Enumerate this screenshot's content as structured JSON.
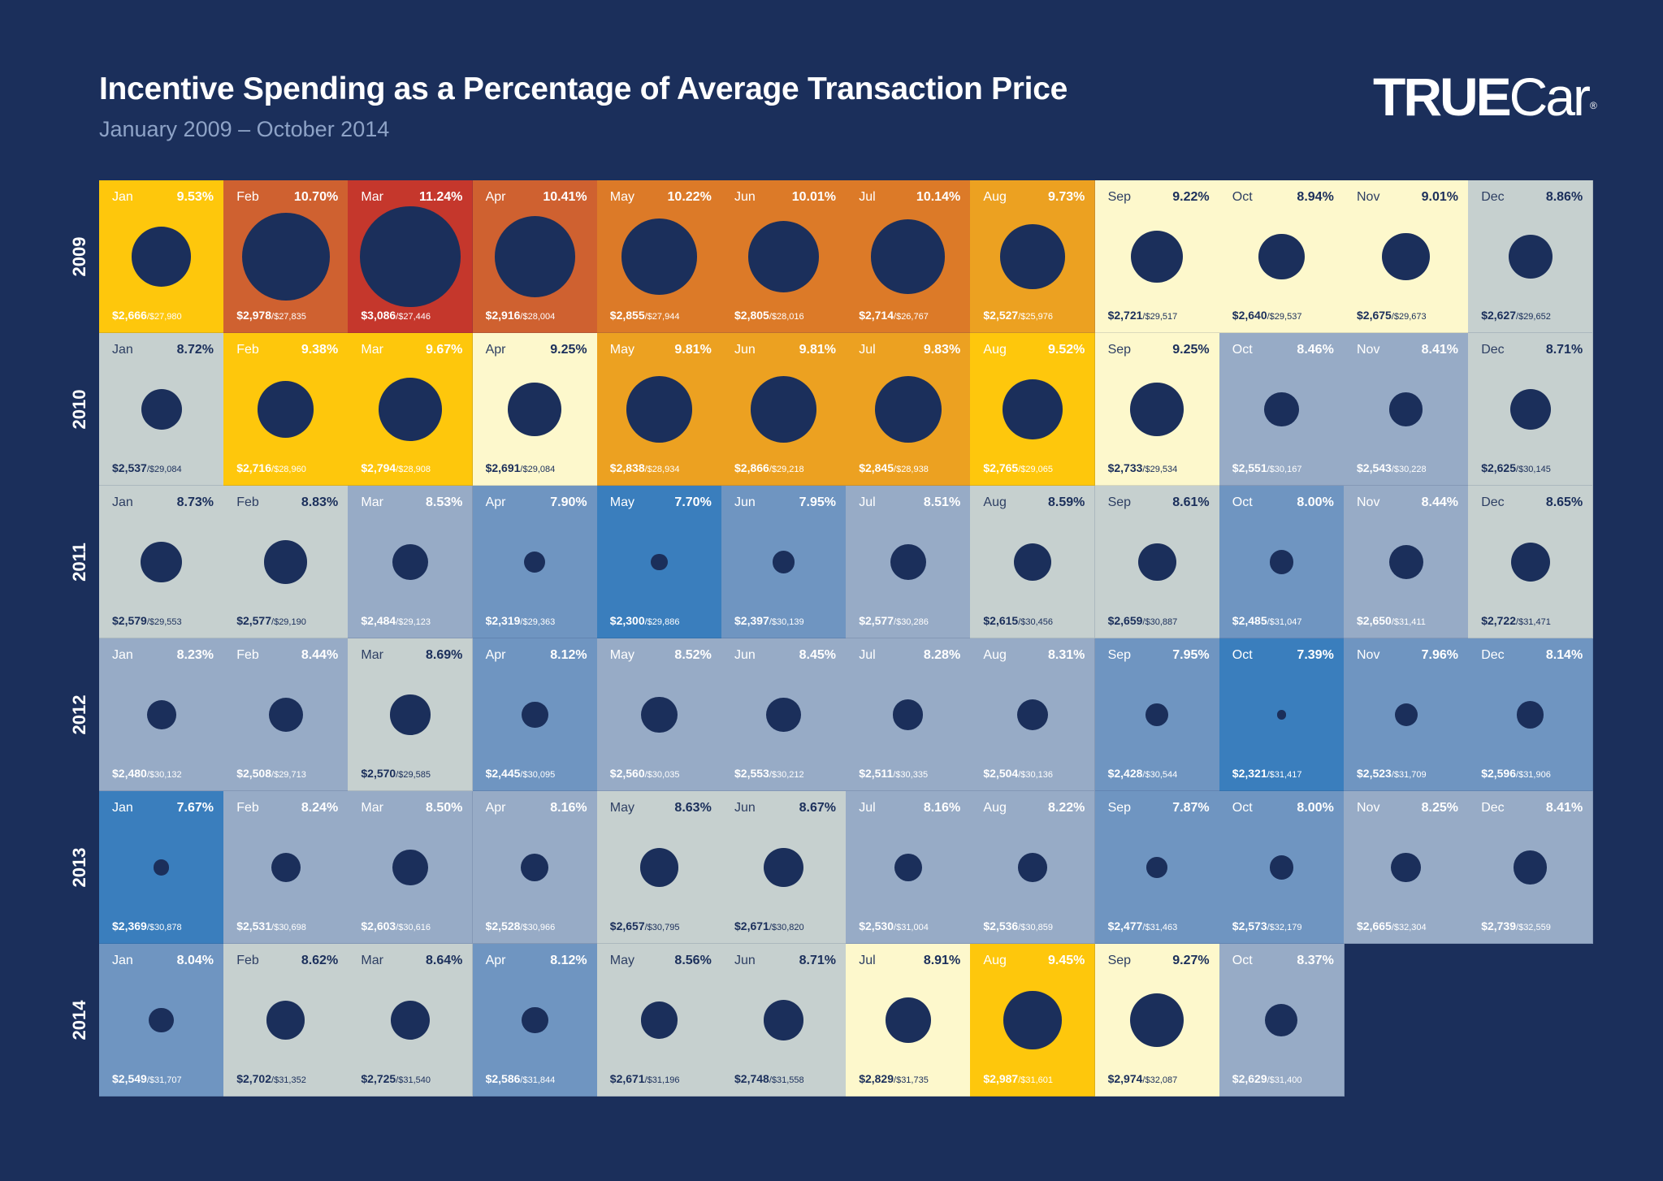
{
  "header": {
    "title": "Incentive Spending as a Percentage of Average Transaction Price",
    "subtitle": "January 2009 – October 2014",
    "logo_bold": "TRUE",
    "logo_light": "Car",
    "logo_reg": "®"
  },
  "colors": {
    "background": "#1b2f5b",
    "dot": "#1b2f5b",
    "scale": [
      "#3a7ebd",
      "#6f95c1",
      "#97abc6",
      "#c6d0cf",
      "#fdf8cc",
      "#fec70c",
      "#eca121",
      "#dc7a28",
      "#cf6130",
      "#c5372c"
    ]
  },
  "chart_data": {
    "type": "heatmap",
    "title": "Incentive Spending as a Percentage of Average Transaction Price",
    "subtitle": "January 2009 – October 2014",
    "rows": [
      {
        "year": "2009",
        "cells": [
          {
            "month": "Jan",
            "pct": "9.53%",
            "incentive": "$2,666",
            "atp": "/$27,980"
          },
          {
            "month": "Feb",
            "pct": "10.70%",
            "incentive": "$2,978",
            "atp": "/$27,835"
          },
          {
            "month": "Mar",
            "pct": "11.24%",
            "incentive": "$3,086",
            "atp": "/$27,446"
          },
          {
            "month": "Apr",
            "pct": "10.41%",
            "incentive": "$2,916",
            "atp": "/$28,004"
          },
          {
            "month": "May",
            "pct": "10.22%",
            "incentive": "$2,855",
            "atp": "/$27,944"
          },
          {
            "month": "Jun",
            "pct": "10.01%",
            "incentive": "$2,805",
            "atp": "/$28,016"
          },
          {
            "month": "Jul",
            "pct": "10.14%",
            "incentive": "$2,714",
            "atp": "/$26,767"
          },
          {
            "month": "Aug",
            "pct": "9.73%",
            "incentive": "$2,527",
            "atp": "/$25,976"
          },
          {
            "month": "Sep",
            "pct": "9.22%",
            "incentive": "$2,721",
            "atp": "/$29,517"
          },
          {
            "month": "Oct",
            "pct": "8.94%",
            "incentive": "$2,640",
            "atp": "/$29,537"
          },
          {
            "month": "Nov",
            "pct": "9.01%",
            "incentive": "$2,675",
            "atp": "/$29,673"
          },
          {
            "month": "Dec",
            "pct": "8.86%",
            "incentive": "$2,627",
            "atp": "/$29,652"
          }
        ]
      },
      {
        "year": "2010",
        "cells": [
          {
            "month": "Jan",
            "pct": "8.72%",
            "incentive": "$2,537",
            "atp": "/$29,084"
          },
          {
            "month": "Feb",
            "pct": "9.38%",
            "incentive": "$2,716",
            "atp": "/$28,960"
          },
          {
            "month": "Mar",
            "pct": "9.67%",
            "incentive": "$2,794",
            "atp": "/$28,908"
          },
          {
            "month": "Apr",
            "pct": "9.25%",
            "incentive": "$2,691",
            "atp": "/$29,084"
          },
          {
            "month": "May",
            "pct": "9.81%",
            "incentive": "$2,838",
            "atp": "/$28,934"
          },
          {
            "month": "Jun",
            "pct": "9.81%",
            "incentive": "$2,866",
            "atp": "/$29,218"
          },
          {
            "month": "Jul",
            "pct": "9.83%",
            "incentive": "$2,845",
            "atp": "/$28,938"
          },
          {
            "month": "Aug",
            "pct": "9.52%",
            "incentive": "$2,765",
            "atp": "/$29,065"
          },
          {
            "month": "Sep",
            "pct": "9.25%",
            "incentive": "$2,733",
            "atp": "/$29,534"
          },
          {
            "month": "Oct",
            "pct": "8.46%",
            "incentive": "$2,551",
            "atp": "/$30,167"
          },
          {
            "month": "Nov",
            "pct": "8.41%",
            "incentive": "$2,543",
            "atp": "/$30,228"
          },
          {
            "month": "Dec",
            "pct": "8.71%",
            "incentive": "$2,625",
            "atp": "/$30,145"
          }
        ]
      },
      {
        "year": "2011",
        "cells": [
          {
            "month": "Jan",
            "pct": "8.73%",
            "incentive": "$2,579",
            "atp": "/$29,553"
          },
          {
            "month": "Feb",
            "pct": "8.83%",
            "incentive": "$2,577",
            "atp": "/$29,190"
          },
          {
            "month": "Mar",
            "pct": "8.53%",
            "incentive": "$2,484",
            "atp": "/$29,123"
          },
          {
            "month": "Apr",
            "pct": "7.90%",
            "incentive": "$2,319",
            "atp": "/$29,363"
          },
          {
            "month": "May",
            "pct": "7.70%",
            "incentive": "$2,300",
            "atp": "/$29,886"
          },
          {
            "month": "Jun",
            "pct": "7.95%",
            "incentive": "$2,397",
            "atp": "/$30,139"
          },
          {
            "month": "Jul",
            "pct": "8.51%",
            "incentive": "$2,577",
            "atp": "/$30,286"
          },
          {
            "month": "Aug",
            "pct": "8.59%",
            "incentive": "$2,615",
            "atp": "/$30,456"
          },
          {
            "month": "Sep",
            "pct": "8.61%",
            "incentive": "$2,659",
            "atp": "/$30,887"
          },
          {
            "month": "Oct",
            "pct": "8.00%",
            "incentive": "$2,485",
            "atp": "/$31,047"
          },
          {
            "month": "Nov",
            "pct": "8.44%",
            "incentive": "$2,650",
            "atp": "/$31,411"
          },
          {
            "month": "Dec",
            "pct": "8.65%",
            "incentive": "$2,722",
            "atp": "/$31,471"
          }
        ]
      },
      {
        "year": "2012",
        "cells": [
          {
            "month": "Jan",
            "pct": "8.23%",
            "incentive": "$2,480",
            "atp": "/$30,132"
          },
          {
            "month": "Feb",
            "pct": "8.44%",
            "incentive": "$2,508",
            "atp": "/$29,713"
          },
          {
            "month": "Mar",
            "pct": "8.69%",
            "incentive": "$2,570",
            "atp": "/$29,585"
          },
          {
            "month": "Apr",
            "pct": "8.12%",
            "incentive": "$2,445",
            "atp": "/$30,095"
          },
          {
            "month": "May",
            "pct": "8.52%",
            "incentive": "$2,560",
            "atp": "/$30,035"
          },
          {
            "month": "Jun",
            "pct": "8.45%",
            "incentive": "$2,553",
            "atp": "/$30,212"
          },
          {
            "month": "Jul",
            "pct": "8.28%",
            "incentive": "$2,511",
            "atp": "/$30,335"
          },
          {
            "month": "Aug",
            "pct": "8.31%",
            "incentive": "$2,504",
            "atp": "/$30,136"
          },
          {
            "month": "Sep",
            "pct": "7.95%",
            "incentive": "$2,428",
            "atp": "/$30,544"
          },
          {
            "month": "Oct",
            "pct": "7.39%",
            "incentive": "$2,321",
            "atp": "/$31,417"
          },
          {
            "month": "Nov",
            "pct": "7.96%",
            "incentive": "$2,523",
            "atp": "/$31,709"
          },
          {
            "month": "Dec",
            "pct": "8.14%",
            "incentive": "$2,596",
            "atp": "/$31,906"
          }
        ]
      },
      {
        "year": "2013",
        "cells": [
          {
            "month": "Jan",
            "pct": "7.67%",
            "incentive": "$2,369",
            "atp": "/$30,878"
          },
          {
            "month": "Feb",
            "pct": "8.24%",
            "incentive": "$2,531",
            "atp": "/$30,698"
          },
          {
            "month": "Mar",
            "pct": "8.50%",
            "incentive": "$2,603",
            "atp": "/$30,616"
          },
          {
            "month": "Apr",
            "pct": "8.16%",
            "incentive": "$2,528",
            "atp": "/$30,966"
          },
          {
            "month": "May",
            "pct": "8.63%",
            "incentive": "$2,657",
            "atp": "/$30,795"
          },
          {
            "month": "Jun",
            "pct": "8.67%",
            "incentive": "$2,671",
            "atp": "/$30,820"
          },
          {
            "month": "Jul",
            "pct": "8.16%",
            "incentive": "$2,530",
            "atp": "/$31,004"
          },
          {
            "month": "Aug",
            "pct": "8.22%",
            "incentive": "$2,536",
            "atp": "/$30,859"
          },
          {
            "month": "Sep",
            "pct": "7.87%",
            "incentive": "$2,477",
            "atp": "/$31,463"
          },
          {
            "month": "Oct",
            "pct": "8.00%",
            "incentive": "$2,573",
            "atp": "/$32,179"
          },
          {
            "month": "Nov",
            "pct": "8.25%",
            "incentive": "$2,665",
            "atp": "/$32,304"
          },
          {
            "month": "Dec",
            "pct": "8.41%",
            "incentive": "$2,739",
            "atp": "/$32,559"
          }
        ]
      },
      {
        "year": "2014",
        "cells": [
          {
            "month": "Jan",
            "pct": "8.04%",
            "incentive": "$2,549",
            "atp": "/$31,707"
          },
          {
            "month": "Feb",
            "pct": "8.62%",
            "incentive": "$2,702",
            "atp": "/$31,352"
          },
          {
            "month": "Mar",
            "pct": "8.64%",
            "incentive": "$2,725",
            "atp": "/$31,540"
          },
          {
            "month": "Apr",
            "pct": "8.12%",
            "incentive": "$2,586",
            "atp": "/$31,844"
          },
          {
            "month": "May",
            "pct": "8.56%",
            "incentive": "$2,671",
            "atp": "/$31,196"
          },
          {
            "month": "Jun",
            "pct": "8.71%",
            "incentive": "$2,748",
            "atp": "/$31,558"
          },
          {
            "month": "Jul",
            "pct": "8.91%",
            "incentive": "$2,829",
            "atp": "/$31,735"
          },
          {
            "month": "Aug",
            "pct": "9.45%",
            "incentive": "$2,987",
            "atp": "/$31,601"
          },
          {
            "month": "Sep",
            "pct": "9.27%",
            "incentive": "$2,974",
            "atp": "/$32,087"
          },
          {
            "month": "Oct",
            "pct": "8.37%",
            "incentive": "$2,629",
            "atp": "/$31,400"
          }
        ]
      }
    ]
  }
}
